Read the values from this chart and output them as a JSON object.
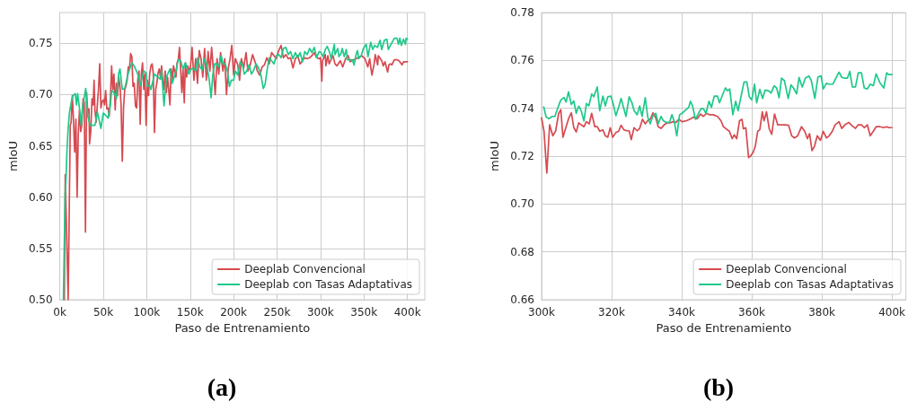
{
  "chart_data": [
    {
      "type": "line",
      "title": "(a)",
      "xlabel": "Paso de Entrenamiento",
      "ylabel": "mIoU",
      "xlim": [
        0,
        420000
      ],
      "ylim": [
        0.5,
        0.78
      ],
      "xticks": [
        {
          "value": 0,
          "label": "0k"
        },
        {
          "value": 50000,
          "label": "50k"
        },
        {
          "value": 100000,
          "label": "100k"
        },
        {
          "value": 150000,
          "label": "150k"
        },
        {
          "value": 200000,
          "label": "200k"
        },
        {
          "value": 250000,
          "label": "250k"
        },
        {
          "value": 300000,
          "label": "300k"
        },
        {
          "value": 350000,
          "label": "350k"
        },
        {
          "value": 400000,
          "label": "400k"
        }
      ],
      "yticks": [
        {
          "value": 0.5,
          "label": "0.50"
        },
        0.55,
        {
          "value": 0.6,
          "label": "0.60"
        },
        0.65,
        {
          "value": 0.7,
          "label": "0.70"
        },
        0.75
      ],
      "grid": true,
      "legend": "bottom right",
      "marker": "none",
      "series": [
        {
          "name": "Deeplab Convencional",
          "color": "#d64a50",
          "x": [
            5200,
            6200,
            9600,
            12000,
            13000,
            14400,
            15800,
            17100,
            18500,
            19900,
            21200,
            22600,
            24000,
            25300,
            26700,
            28100,
            29500,
            30800,
            32200,
            33600,
            34200,
            35600,
            37000,
            38400,
            39400,
            40400,
            41800,
            43200,
            44500,
            45900,
            47300,
            48600,
            50000,
            51400,
            52700,
            54100,
            55500,
            56800,
            58200,
            59600,
            61000,
            62300,
            63700,
            65100,
            66400,
            67800,
            69200,
            70500,
            71900,
            73300,
            74700,
            76000,
            77400,
            78800,
            80100,
            81500,
            82900,
            84200,
            85600,
            87000,
            88400,
            89700,
            91100,
            92500,
            93800,
            95200,
            96600,
            97900,
            99300,
            100700,
            102100,
            103400,
            104800,
            106200,
            107500,
            108900,
            110300,
            111600,
            113000,
            114400,
            115800,
            117100,
            118500,
            119900,
            121200,
            122600,
            124000,
            125300,
            126700,
            128100,
            129500,
            130800,
            132200,
            133600,
            134900,
            136300,
            137700,
            139000,
            140400,
            141800,
            143200,
            144500,
            145900,
            147300,
            148600,
            150200,
            152200,
            154300,
            156300,
            158400,
            160400,
            162500,
            164500,
            166600,
            168600,
            170600,
            172700,
            174700,
            176800,
            178800,
            180900,
            182900,
            185000,
            187700,
            189800,
            191800,
            193900,
            195900,
            197900,
            200000,
            202000,
            204800,
            206800,
            208900,
            211600,
            214300,
            216400,
            219100,
            221800,
            224600,
            227300,
            230000,
            232800,
            235500,
            238200,
            241000,
            243700,
            246400,
            249100,
            251900,
            254600,
            257300,
            260100,
            262800,
            265500,
            268300,
            271000,
            273700,
            276500,
            279200,
            281900,
            284600,
            287400,
            290100,
            292800,
            295600,
            298300,
            300000,
            301500,
            302300,
            305500,
            306100,
            308500,
            309900,
            314300,
            316600,
            318900,
            322700,
            325600,
            328800,
            331800,
            334100,
            338400,
            343500,
            347100,
            351200,
            354400,
            356500,
            359100,
            361700,
            363000,
            365700,
            366500,
            370500,
            372200,
            374200,
            377200,
            378700,
            380400,
            382100,
            384900,
            387700,
            390400,
            393800,
            395500,
            398500,
            400000
          ],
          "values": [
            0.5,
            0.622,
            0.5,
            0.67,
            0.673,
            0.699,
            0.673,
            0.644,
            0.676,
            0.6,
            0.661,
            0.685,
            0.664,
            0.67,
            0.696,
            0.693,
            0.566,
            0.702,
            0.682,
            0.686,
            0.652,
            0.664,
            0.696,
            0.69,
            0.714,
            0.685,
            0.673,
            0.69,
            0.705,
            0.73,
            0.687,
            0.693,
            0.695,
            0.69,
            0.704,
            0.686,
            0.687,
            0.679,
            0.696,
            0.728,
            0.705,
            0.72,
            0.685,
            0.711,
            0.699,
            0.717,
            0.708,
            0.69,
            0.635,
            0.687,
            0.705,
            0.708,
            0.714,
            0.727,
            0.725,
            0.74,
            0.737,
            0.708,
            0.711,
            0.689,
            0.687,
            0.714,
            0.723,
            0.671,
            0.72,
            0.731,
            0.705,
            0.72,
            0.67,
            0.714,
            0.699,
            0.72,
            0.728,
            0.73,
            0.721,
            0.663,
            0.705,
            0.711,
            0.721,
            0.725,
            0.717,
            0.728,
            0.714,
            0.705,
            0.723,
            0.702,
            0.717,
            0.705,
            0.69,
            0.725,
            0.714,
            0.728,
            0.723,
            0.717,
            0.731,
            0.734,
            0.746,
            0.725,
            0.702,
            0.725,
            0.692,
            0.731,
            0.717,
            0.728,
            0.724,
            0.726,
            0.746,
            0.714,
            0.735,
            0.711,
            0.743,
            0.735,
            0.717,
            0.745,
            0.714,
            0.742,
            0.723,
            0.746,
            0.723,
            0.7,
            0.735,
            0.72,
            0.741,
            0.723,
            0.735,
            0.7,
            0.726,
            0.735,
            0.748,
            0.719,
            0.735,
            0.729,
            0.714,
            0.735,
            0.726,
            0.741,
            0.723,
            0.729,
            0.739,
            0.732,
            0.723,
            0.719,
            0.727,
            0.729,
            0.736,
            0.73,
            0.741,
            0.738,
            0.735,
            0.743,
            0.748,
            0.736,
            0.739,
            0.735,
            0.736,
            0.726,
            0.735,
            0.738,
            0.73,
            0.733,
            0.736,
            0.735,
            0.736,
            0.738,
            0.741,
            0.736,
            0.735,
            0.736,
            0.713,
            0.733,
            0.739,
            0.728,
            0.738,
            0.73,
            0.738,
            0.73,
            0.728,
            0.733,
            0.727,
            0.735,
            0.738,
            0.732,
            0.734,
            0.736,
            0.738,
            0.735,
            0.727,
            0.735,
            0.719,
            0.73,
            0.739,
            0.729,
            0.738,
            0.733,
            0.728,
            0.732,
            0.722,
            0.729,
            0.73,
            0.729,
            0.734,
            0.734,
            0.733,
            0.729,
            0.732,
            0.732,
            0.732
          ]
        },
        {
          "name": "Deeplab con Tasas Adaptativas",
          "color": "#1ec98a",
          "x": [
            4100,
            5100,
            6200,
            7200,
            8200,
            9600,
            11000,
            13700,
            15100,
            17800,
            19200,
            20500,
            23300,
            24700,
            26000,
            29800,
            32200,
            34900,
            37700,
            40400,
            43200,
            47300,
            50000,
            52700,
            55500,
            58200,
            59600,
            62300,
            65100,
            67800,
            69200,
            71900,
            74700,
            78800,
            82900,
            85600,
            89700,
            92500,
            96600,
            99300,
            100700,
            103400,
            104800,
            108900,
            111600,
            115800,
            117100,
            119900,
            122600,
            126700,
            129500,
            133600,
            136300,
            139000,
            141800,
            144500,
            148600,
            150200,
            153600,
            156300,
            158700,
            161100,
            163800,
            166600,
            169300,
            172000,
            174100,
            176100,
            178200,
            180200,
            182900,
            185700,
            187700,
            190400,
            192800,
            195200,
            197300,
            200000,
            202000,
            204800,
            207500,
            210200,
            212300,
            215000,
            217700,
            220500,
            223200,
            225900,
            228700,
            231400,
            234100,
            236200,
            238900,
            241000,
            243700,
            246400,
            249100,
            251900,
            254600,
            257300,
            260100,
            262800,
            265500,
            268300,
            271000,
            273700,
            276500,
            279200,
            281900,
            284600,
            287400,
            290100,
            292800,
            295600,
            298300,
            300600,
            303000,
            305500,
            307700,
            310600,
            312100,
            315900,
            316600,
            319800,
            321200,
            323500,
            325000,
            327300,
            329600,
            331000,
            333300,
            336500,
            338600,
            340900,
            342500,
            343900,
            346900,
            349300,
            352500,
            354600,
            357800,
            360000,
            362300,
            365500,
            368500,
            370400,
            373500,
            376300,
            378000,
            380400,
            384900,
            388000,
            389600,
            391300,
            393000,
            395500,
            397700,
            398500,
            400000
          ],
          "values": [
            0.5,
            0.553,
            0.603,
            0.62,
            0.645,
            0.667,
            0.682,
            0.695,
            0.699,
            0.701,
            0.69,
            0.701,
            0.682,
            0.67,
            0.687,
            0.706,
            0.679,
            0.67,
            0.67,
            0.67,
            0.683,
            0.667,
            0.682,
            0.68,
            0.677,
            0.69,
            0.704,
            0.702,
            0.696,
            0.721,
            0.725,
            0.705,
            0.706,
            0.721,
            0.731,
            0.728,
            0.72,
            0.709,
            0.723,
            0.721,
            0.708,
            0.709,
            0.705,
            0.72,
            0.718,
            0.715,
            0.723,
            0.689,
            0.717,
            0.725,
            0.711,
            0.723,
            0.734,
            0.733,
            0.725,
            0.731,
            0.72,
            0.724,
            0.726,
            0.723,
            0.736,
            0.727,
            0.724,
            0.735,
            0.727,
            0.714,
            0.697,
            0.72,
            0.73,
            0.73,
            0.727,
            0.738,
            0.73,
            0.73,
            0.723,
            0.708,
            0.714,
            0.714,
            0.723,
            0.719,
            0.732,
            0.729,
            0.72,
            0.723,
            0.729,
            0.72,
            0.724,
            0.73,
            0.726,
            0.719,
            0.706,
            0.71,
            0.726,
            0.736,
            0.733,
            0.73,
            0.738,
            0.739,
            0.736,
            0.745,
            0.746,
            0.739,
            0.742,
            0.735,
            0.741,
            0.736,
            0.741,
            0.732,
            0.742,
            0.739,
            0.745,
            0.741,
            0.746,
            0.736,
            0.742,
            0.741,
            0.737,
            0.744,
            0.747,
            0.741,
            0.735,
            0.749,
            0.739,
            0.745,
            0.737,
            0.74,
            0.745,
            0.737,
            0.744,
            0.734,
            0.734,
            0.734,
            0.729,
            0.739,
            0.743,
            0.735,
            0.738,
            0.745,
            0.749,
            0.737,
            0.751,
            0.744,
            0.748,
            0.746,
            0.753,
            0.744,
            0.753,
            0.754,
            0.744,
            0.748,
            0.755,
            0.755,
            0.749,
            0.755,
            0.748,
            0.754,
            0.749,
            0.755,
            0.754
          ]
        }
      ]
    },
    {
      "type": "line",
      "title": "(b)",
      "xlabel": "Paso de Entrenamiento",
      "ylabel": "mIoU",
      "xlim": [
        300000,
        404000
      ],
      "ylim": [
        0.66,
        0.78
      ],
      "xticks": [
        {
          "value": 300000,
          "label": "300k"
        },
        {
          "value": 320000,
          "label": "320k"
        },
        {
          "value": 340000,
          "label": "340k"
        },
        {
          "value": 360000,
          "label": "360k"
        },
        {
          "value": 380000,
          "label": "380k"
        },
        {
          "value": 400000,
          "label": "400k"
        }
      ],
      "yticks": [
        0.66,
        0.68,
        {
          "value": 0.7,
          "label": "0.70"
        },
        0.72,
        0.74,
        0.76,
        0.78
      ],
      "grid": true,
      "legend": "bottom right",
      "marker": "none",
      "series": [
        {
          "name": "Deeplab Convencional",
          "color": "#d64a50",
          "x": [
            300000,
            300700,
            301500,
            302300,
            303200,
            304000,
            304900,
            305500,
            306100,
            307000,
            307800,
            308500,
            309200,
            309900,
            310600,
            311300,
            312100,
            312800,
            313600,
            314300,
            315200,
            315900,
            316600,
            317500,
            318200,
            318900,
            319600,
            320300,
            321200,
            322000,
            322700,
            323500,
            324300,
            325000,
            325600,
            326400,
            327300,
            328000,
            328800,
            329600,
            330300,
            331100,
            331800,
            332600,
            333300,
            334100,
            335000,
            335800,
            336700,
            337500,
            338400,
            339200,
            340100,
            341400,
            342500,
            343500,
            344400,
            345400,
            346200,
            347100,
            347900,
            349000,
            350200,
            351200,
            351900,
            352700,
            353600,
            354400,
            355000,
            355700,
            356500,
            357200,
            357600,
            358300,
            359100,
            359700,
            360400,
            361000,
            361700,
            362300,
            363000,
            363500,
            364200,
            365000,
            365700,
            366500,
            367400,
            368400,
            369500,
            370500,
            371400,
            372200,
            373100,
            374200,
            375100,
            375900,
            376500,
            377200,
            377900,
            378700,
            379600,
            380400,
            381300,
            382100,
            383000,
            383800,
            384900,
            385700,
            386600,
            387700,
            388700,
            389600,
            390400,
            391300,
            392100,
            393000,
            393800,
            394700,
            395500,
            396600,
            397700,
            398500,
            399100,
            400000
          ],
          "values": [
            0.736,
            0.7304,
            0.7129,
            0.7331,
            0.7285,
            0.7304,
            0.7379,
            0.7394,
            0.7279,
            0.7323,
            0.736,
            0.7381,
            0.7319,
            0.7301,
            0.7339,
            0.7331,
            0.7323,
            0.7344,
            0.7335,
            0.7379,
            0.7323,
            0.7323,
            0.7304,
            0.731,
            0.7285,
            0.7279,
            0.7319,
            0.7279,
            0.7298,
            0.7304,
            0.7329,
            0.731,
            0.7306,
            0.7306,
            0.7269,
            0.7319,
            0.7306,
            0.7316,
            0.7354,
            0.7335,
            0.7348,
            0.7356,
            0.7381,
            0.736,
            0.7323,
            0.7316,
            0.7331,
            0.7339,
            0.7339,
            0.7344,
            0.7341,
            0.7354,
            0.7344,
            0.7348,
            0.7356,
            0.7364,
            0.7356,
            0.7376,
            0.7366,
            0.7379,
            0.7373,
            0.7373,
            0.7366,
            0.7348,
            0.7323,
            0.7314,
            0.7304,
            0.7273,
            0.7289,
            0.7273,
            0.7348,
            0.7354,
            0.7314,
            0.7319,
            0.7194,
            0.7201,
            0.7216,
            0.7241,
            0.7304,
            0.731,
            0.7385,
            0.7348,
            0.7385,
            0.7314,
            0.7291,
            0.7376,
            0.7331,
            0.7331,
            0.7331,
            0.7329,
            0.7285,
            0.7276,
            0.7285,
            0.7323,
            0.7304,
            0.7273,
            0.7294,
            0.7223,
            0.7241,
            0.7285,
            0.7266,
            0.7304,
            0.7276,
            0.7285,
            0.7304,
            0.7331,
            0.7344,
            0.7316,
            0.7331,
            0.7341,
            0.7326,
            0.7316,
            0.7331,
            0.7331,
            0.7319,
            0.7331,
            0.7285,
            0.7304,
            0.7323,
            0.7323,
            0.7319,
            0.7323,
            0.7319,
            0.7319
          ]
        },
        {
          "name": "Deeplab con Tasas Adaptativas",
          "color": "#1ec98a",
          "x": [
            300600,
            301300,
            302100,
            303000,
            303800,
            304700,
            305500,
            306400,
            307000,
            307700,
            308500,
            309200,
            309900,
            310600,
            311300,
            312100,
            312800,
            313500,
            314300,
            314900,
            315900,
            316600,
            317500,
            318200,
            318900,
            319800,
            320500,
            321200,
            322000,
            322700,
            323500,
            324100,
            325000,
            325800,
            326400,
            327300,
            328000,
            328700,
            329600,
            330300,
            331000,
            331700,
            332600,
            333300,
            334100,
            334800,
            335700,
            336500,
            337200,
            337900,
            338600,
            339400,
            340100,
            340900,
            342000,
            342500,
            343100,
            343900,
            344600,
            345500,
            346200,
            346900,
            347800,
            348500,
            349300,
            350200,
            350800,
            351600,
            352500,
            353100,
            353700,
            354600,
            355400,
            356100,
            357000,
            357800,
            358600,
            359300,
            360000,
            360800,
            361400,
            362300,
            363100,
            363800,
            364800,
            365500,
            366400,
            367100,
            367800,
            368500,
            369300,
            370400,
            371200,
            371900,
            372800,
            373500,
            374400,
            375300,
            376300,
            377000,
            378000,
            378900,
            379800,
            380400,
            381300,
            382300,
            383200,
            384000,
            384900,
            385700,
            386600,
            387300,
            388000,
            388700,
            389600,
            390400,
            391300,
            392100,
            393000,
            393800,
            394700,
            395500,
            396600,
            397700,
            398500,
            399100,
            400000
          ],
          "values": [
            0.7406,
            0.7364,
            0.7356,
            0.7366,
            0.7366,
            0.7404,
            0.7435,
            0.7445,
            0.7426,
            0.7469,
            0.7416,
            0.7431,
            0.7379,
            0.7409,
            0.739,
            0.7347,
            0.742,
            0.741,
            0.746,
            0.7448,
            0.7489,
            0.739,
            0.7451,
            0.741,
            0.7448,
            0.7451,
            0.7416,
            0.7369,
            0.7404,
            0.7441,
            0.7398,
            0.7366,
            0.7448,
            0.7423,
            0.739,
            0.7373,
            0.741,
            0.7366,
            0.7444,
            0.7364,
            0.7335,
            0.7366,
            0.7379,
            0.7335,
            0.7366,
            0.7347,
            0.7341,
            0.7341,
            0.7373,
            0.7344,
            0.7285,
            0.7373,
            0.7379,
            0.739,
            0.7404,
            0.7429,
            0.741,
            0.7354,
            0.7373,
            0.7398,
            0.7398,
            0.7379,
            0.7429,
            0.7404,
            0.7451,
            0.7451,
            0.7423,
            0.7454,
            0.7485,
            0.7473,
            0.7481,
            0.7373,
            0.7429,
            0.739,
            0.7454,
            0.751,
            0.751,
            0.7448,
            0.7435,
            0.7501,
            0.7423,
            0.7479,
            0.7441,
            0.7476,
            0.7473,
            0.7464,
            0.7494,
            0.7485,
            0.7444,
            0.7526,
            0.7516,
            0.7441,
            0.7498,
            0.7485,
            0.746,
            0.7529,
            0.7489,
            0.7526,
            0.7535,
            0.7516,
            0.7441,
            0.7531,
            0.7535,
            0.7481,
            0.7504,
            0.75,
            0.7501,
            0.7526,
            0.7551,
            0.7529,
            0.7526,
            0.7526,
            0.7554,
            0.7489,
            0.7489,
            0.7548,
            0.7548,
            0.7485,
            0.7481,
            0.7501,
            0.7494,
            0.7544,
            0.7506,
            0.7485,
            0.7548,
            0.7541,
            0.7541
          ]
        }
      ]
    }
  ]
}
